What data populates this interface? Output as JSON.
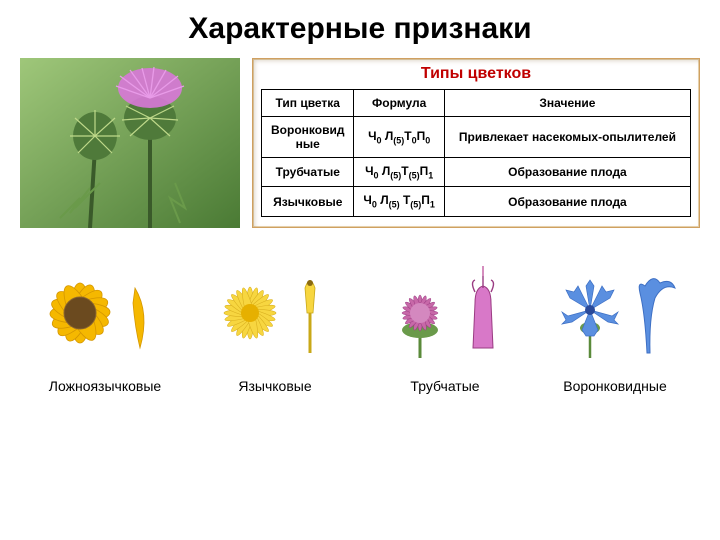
{
  "title": "Характерные признаки",
  "table": {
    "title": "Типы цветков",
    "columns": [
      "Тип цветка",
      "Формула",
      "Значение"
    ],
    "rows": [
      {
        "type": "Воронковидные",
        "formula_parts": [
          "Ч",
          "0",
          " Л",
          "(5)",
          "Т",
          "0",
          "П",
          "0"
        ],
        "meaning": "Привлекает насекомых-опылителей"
      },
      {
        "type": "Трубчатые",
        "formula_parts": [
          "Ч",
          "0",
          " Л",
          "(5)",
          "Т",
          "(5)",
          "П",
          "1"
        ],
        "meaning": "Образование плода"
      },
      {
        "type": "Язычковые",
        "formula_parts": [
          "Ч",
          "0",
          " Л",
          "(5)",
          " Т",
          "(5)",
          "П",
          "1"
        ],
        "meaning": "Образование плода"
      }
    ]
  },
  "flowers": [
    {
      "label": "Ложноязычковые",
      "colors": {
        "petal": "#f5b800",
        "center": "#6b4a1f"
      }
    },
    {
      "label": "Язычковые",
      "colors": {
        "petal": "#f7d640",
        "center": "#e6b000"
      }
    },
    {
      "label": "Трубчатые",
      "colors": {
        "petal": "#c768a8",
        "center": "#9a3b82"
      }
    },
    {
      "label": "Воронковидные",
      "colors": {
        "petal": "#5a8fe0",
        "center": "#3d6fc4"
      }
    }
  ],
  "photo": {
    "bg_top": "#8fbf6f",
    "bg_bot": "#5a8f3f",
    "flower_color": "#d878d8",
    "bud_color": "#4f7a3a",
    "spine_color": "#bfd98a"
  },
  "style": {
    "border_color": "#000000",
    "table_border": "#d0a060",
    "table_title_color": "#c00000"
  }
}
